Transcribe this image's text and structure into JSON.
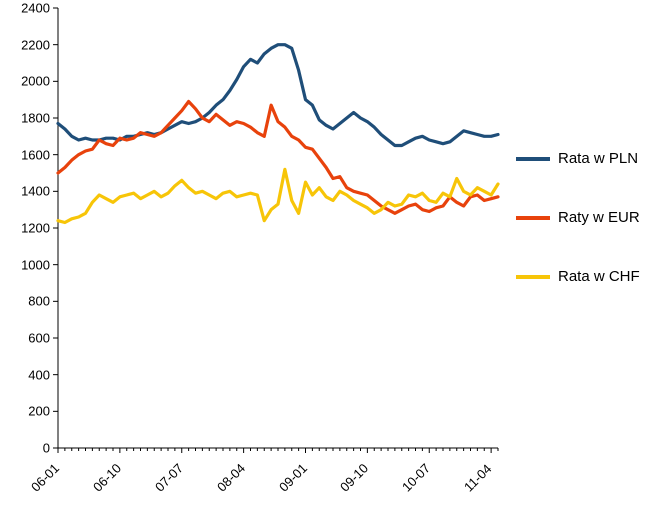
{
  "chart": {
    "type": "line",
    "background_color": "#ffffff",
    "axis_color": "#000000",
    "tick_color": "#000000",
    "tick_font_size": 13,
    "legend_font_size": 15,
    "line_width": 3.2,
    "y_axis": {
      "min": 0,
      "max": 2400,
      "step": 200,
      "ticks": [
        0,
        200,
        400,
        600,
        800,
        1000,
        1200,
        1400,
        1600,
        1800,
        2000,
        2200,
        2400
      ]
    },
    "x_axis": {
      "n_points": 65,
      "label_every": 9,
      "labels": [
        "06-01",
        "06-10",
        "07-07",
        "08-04",
        "09-01",
        "09-10",
        "10-07",
        "11-04"
      ]
    },
    "series": [
      {
        "name": "Rata w PLN",
        "color": "#1f4e79",
        "values": [
          1770,
          1740,
          1700,
          1680,
          1690,
          1680,
          1680,
          1690,
          1690,
          1680,
          1700,
          1700,
          1710,
          1720,
          1710,
          1720,
          1740,
          1760,
          1780,
          1770,
          1780,
          1800,
          1830,
          1870,
          1900,
          1950,
          2010,
          2080,
          2120,
          2100,
          2150,
          2180,
          2200,
          2200,
          2180,
          2060,
          1900,
          1870,
          1790,
          1760,
          1740,
          1770,
          1800,
          1830,
          1800,
          1780,
          1750,
          1710,
          1680,
          1650,
          1650,
          1670,
          1690,
          1700,
          1680,
          1670,
          1660,
          1670,
          1700,
          1730,
          1720,
          1710,
          1700,
          1700,
          1710
        ]
      },
      {
        "name": "Raty w EUR",
        "color": "#e8420c",
        "values": [
          1500,
          1530,
          1570,
          1600,
          1620,
          1630,
          1680,
          1660,
          1650,
          1690,
          1680,
          1690,
          1720,
          1710,
          1700,
          1720,
          1760,
          1800,
          1840,
          1890,
          1850,
          1800,
          1780,
          1820,
          1790,
          1760,
          1780,
          1770,
          1750,
          1720,
          1700,
          1870,
          1780,
          1750,
          1700,
          1680,
          1640,
          1630,
          1580,
          1530,
          1470,
          1480,
          1420,
          1400,
          1390,
          1380,
          1350,
          1320,
          1300,
          1280,
          1300,
          1320,
          1330,
          1300,
          1290,
          1310,
          1320,
          1370,
          1340,
          1320,
          1370,
          1380,
          1350,
          1360,
          1370
        ]
      },
      {
        "name": "Rata w CHF",
        "color": "#f7c508",
        "values": [
          1240,
          1230,
          1250,
          1260,
          1280,
          1340,
          1380,
          1360,
          1340,
          1370,
          1380,
          1390,
          1360,
          1380,
          1400,
          1370,
          1390,
          1430,
          1460,
          1420,
          1390,
          1400,
          1380,
          1360,
          1390,
          1400,
          1370,
          1380,
          1390,
          1380,
          1240,
          1300,
          1330,
          1520,
          1350,
          1280,
          1450,
          1380,
          1420,
          1370,
          1350,
          1400,
          1380,
          1350,
          1330,
          1310,
          1280,
          1300,
          1340,
          1320,
          1330,
          1380,
          1370,
          1390,
          1350,
          1340,
          1390,
          1370,
          1470,
          1400,
          1380,
          1420,
          1400,
          1380,
          1440
        ]
      }
    ]
  }
}
